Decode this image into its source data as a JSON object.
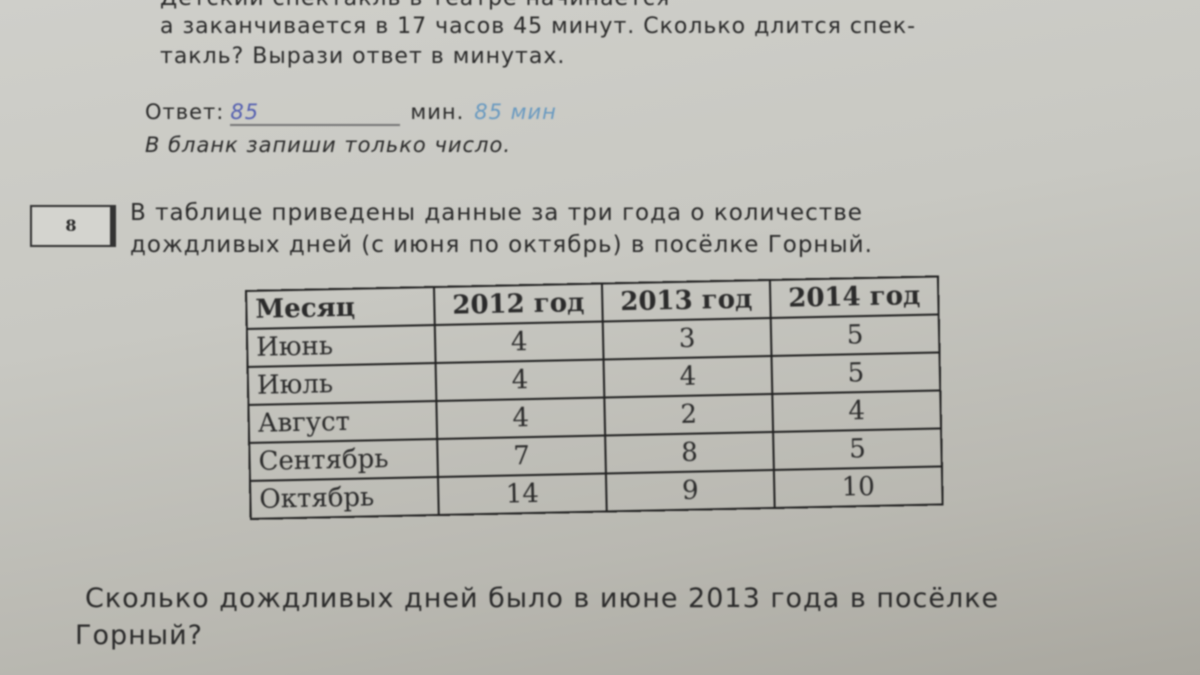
{
  "previous_task": {
    "cut_line": "Детский спектакль в театре начинается",
    "line1": "а заканчивается в 17 часов 45 минут. Сколько длится спек-",
    "line2": "такль? Вырази ответ в минутах.",
    "answer_label": "Ответ:",
    "answer_value": "85",
    "answer_unit": "мин.",
    "handwritten_note": "85 мин",
    "instruction": "В бланк запиши только число."
  },
  "task": {
    "number": "8",
    "text_line1": "В таблице приведены данные за три года о количестве",
    "text_line2": "дождливых дней (с июня по октябрь) в посёлке Горный.",
    "table": {
      "headers": [
        "Месяц",
        "2012 год",
        "2013 год",
        "2014 год"
      ],
      "rows": [
        [
          "Июнь",
          "4",
          "3",
          "5"
        ],
        [
          "Июль",
          "4",
          "4",
          "5"
        ],
        [
          "Август",
          "4",
          "2",
          "4"
        ],
        [
          "Сентябрь",
          "7",
          "8",
          "5"
        ],
        [
          "Октябрь",
          "14",
          "9",
          "10"
        ]
      ]
    },
    "question_line1": "Сколько дождливых дней было в июне 2013 года в посёлке",
    "question_line2": "Горный?"
  }
}
